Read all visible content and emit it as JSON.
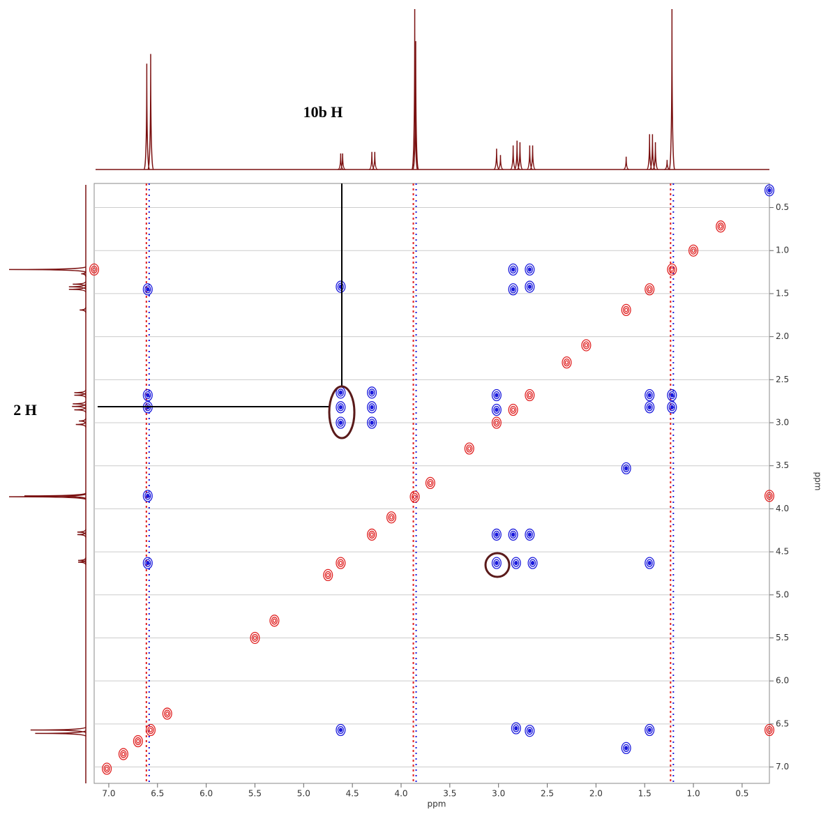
{
  "chart_data": {
    "type": "contour2d",
    "x_label": "ppm",
    "y_label": "ppm",
    "xlim": [
      7.15,
      0.22
    ],
    "ylim": [
      0.22,
      7.19
    ],
    "xticks": [
      {
        "value": 7,
        "label": "7.0"
      },
      6.5,
      {
        "value": 6,
        "label": "6.0"
      },
      5.5,
      {
        "value": 5,
        "label": "5.0"
      },
      4.5,
      {
        "value": 4,
        "label": "4.0"
      },
      3.5,
      {
        "value": 3,
        "label": "3.0"
      },
      2.5,
      {
        "value": 2,
        "label": "2.0"
      },
      1.5,
      {
        "value": 1,
        "label": "1.0"
      },
      0.5
    ],
    "yticks": [
      0.5,
      {
        "value": 1,
        "label": "1.0"
      },
      1.5,
      {
        "value": 2,
        "label": "2.0"
      },
      2.5,
      {
        "value": 3,
        "label": "3.0"
      },
      3.5,
      {
        "value": 4,
        "label": "4.0"
      },
      4.5,
      {
        "value": 5,
        "label": "5.0"
      },
      5.5,
      {
        "value": 6,
        "label": "6.0"
      },
      6.5,
      {
        "value": 7,
        "label": "7.0"
      }
    ],
    "grid": "y",
    "annotations": [
      {
        "text": "10b H"
      },
      {
        "text": "2 H"
      }
    ],
    "projection": {
      "color": "#7a1010",
      "x": [
        6.61,
        6.57,
        4.62,
        4.6,
        4.3,
        4.27,
        3.86,
        3.85,
        3.02,
        2.98,
        2.85,
        2.81,
        2.78,
        2.68,
        2.65,
        1.69,
        1.45,
        1.42,
        1.39,
        1.27,
        1.22
      ],
      "values": [
        66,
        72,
        10,
        10,
        11,
        11,
        100,
        80,
        13,
        9,
        15,
        18,
        17,
        15,
        15,
        8,
        22,
        22,
        17,
        6,
        100
      ]
    },
    "t1_noise_x": [
      6.6,
      3.86,
      1.22
    ],
    "series": [
      {
        "color": "#e02020",
        "x": [
          7.02,
          6.85,
          6.7,
          6.57,
          6.4,
          5.5,
          5.3,
          4.75,
          4.62,
          4.3,
          4.1,
          3.86,
          3.7,
          3.3,
          3.02,
          2.85,
          2.68,
          2.3,
          2.1,
          1.69,
          1.45,
          1.22,
          1.0,
          0.72,
          7.15,
          0.22,
          0.22
        ],
        "values": [
          7.02,
          6.85,
          6.7,
          6.57,
          6.38,
          5.5,
          5.3,
          4.77,
          4.63,
          4.3,
          4.1,
          3.86,
          3.7,
          3.3,
          3.0,
          2.85,
          2.68,
          2.3,
          2.1,
          1.69,
          1.45,
          1.22,
          1.0,
          0.72,
          1.22,
          3.85,
          6.57
        ]
      },
      {
        "color": "#1a1adc",
        "x": [
          6.6,
          6.6,
          6.6,
          6.6,
          6.6,
          4.62,
          4.62,
          4.62,
          4.62,
          4.3,
          4.3,
          4.3,
          3.02,
          3.02,
          2.85,
          2.85,
          2.68,
          2.68,
          1.45,
          1.45,
          1.22,
          1.22,
          3.02,
          2.85,
          2.68,
          3.02,
          2.82,
          2.65,
          1.45,
          4.62,
          2.82,
          2.68,
          1.45,
          0.22,
          1.69,
          1.69
        ],
        "values": [
          1.45,
          2.68,
          2.82,
          3.85,
          4.63,
          1.42,
          2.65,
          2.82,
          3.0,
          2.65,
          2.82,
          3.0,
          2.68,
          2.85,
          1.22,
          1.45,
          1.22,
          1.42,
          2.68,
          2.82,
          2.68,
          2.82,
          4.3,
          4.3,
          4.3,
          4.63,
          4.63,
          4.63,
          4.63,
          6.57,
          6.55,
          6.58,
          6.57,
          0.3,
          3.53,
          6.78
        ]
      }
    ]
  }
}
